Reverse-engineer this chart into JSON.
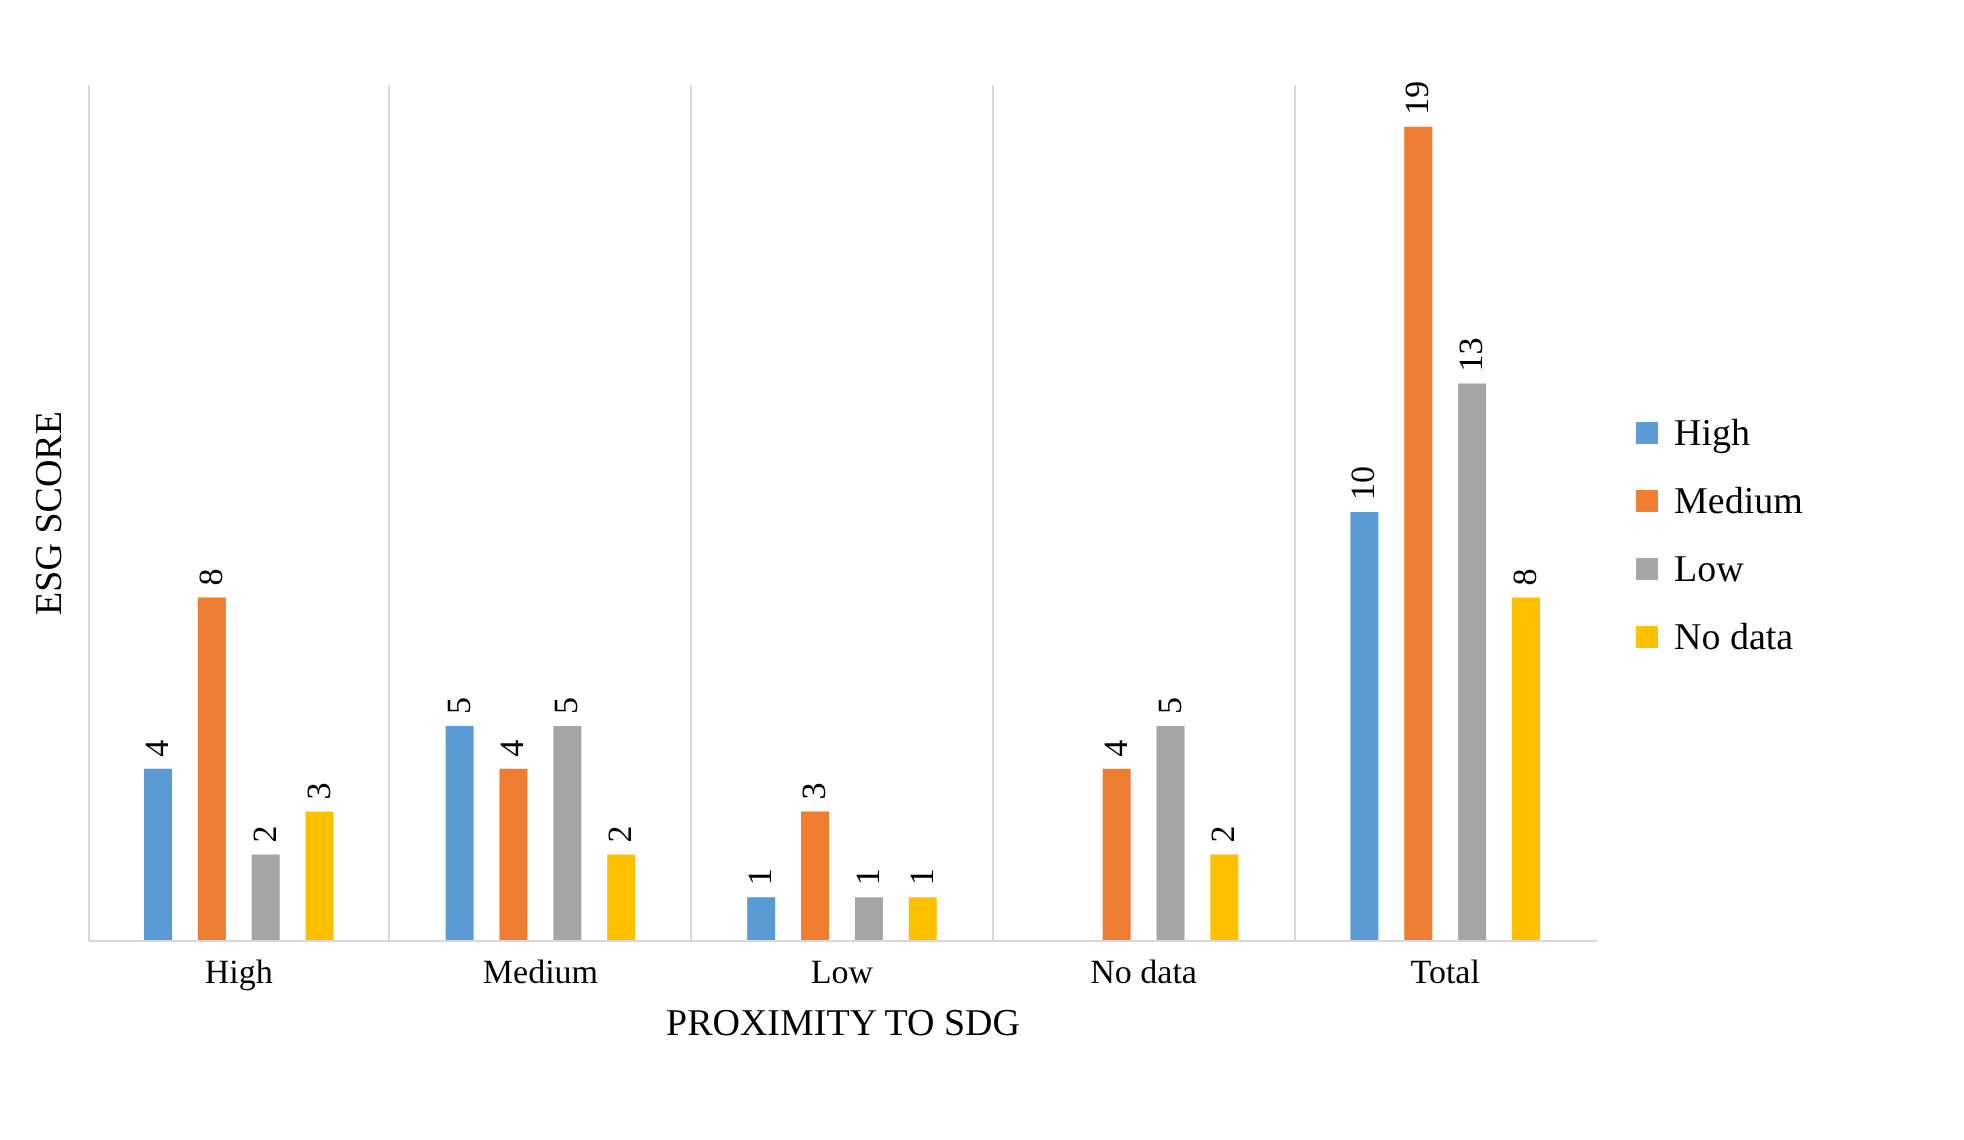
{
  "chart_data": {
    "type": "bar",
    "xlabel": "PROXIMITY TO SDG",
    "ylabel": "ESG SCORE",
    "categories": [
      "High",
      "Medium",
      "Low",
      "No data",
      "Total"
    ],
    "series": [
      {
        "name": "High",
        "color": "#5b9bd5",
        "values": [
          4,
          5,
          1,
          null,
          10
        ]
      },
      {
        "name": "Medium",
        "color": "#ed7d31",
        "values": [
          8,
          4,
          3,
          4,
          19
        ]
      },
      {
        "name": "Low",
        "color": "#a5a5a5",
        "values": [
          2,
          5,
          1,
          5,
          13
        ]
      },
      {
        "name": "No data",
        "color": "#ffc000",
        "values": [
          3,
          2,
          1,
          2,
          8
        ]
      }
    ],
    "data_labels": true,
    "grid": "x",
    "legend": "right",
    "tick_labels": "x"
  }
}
